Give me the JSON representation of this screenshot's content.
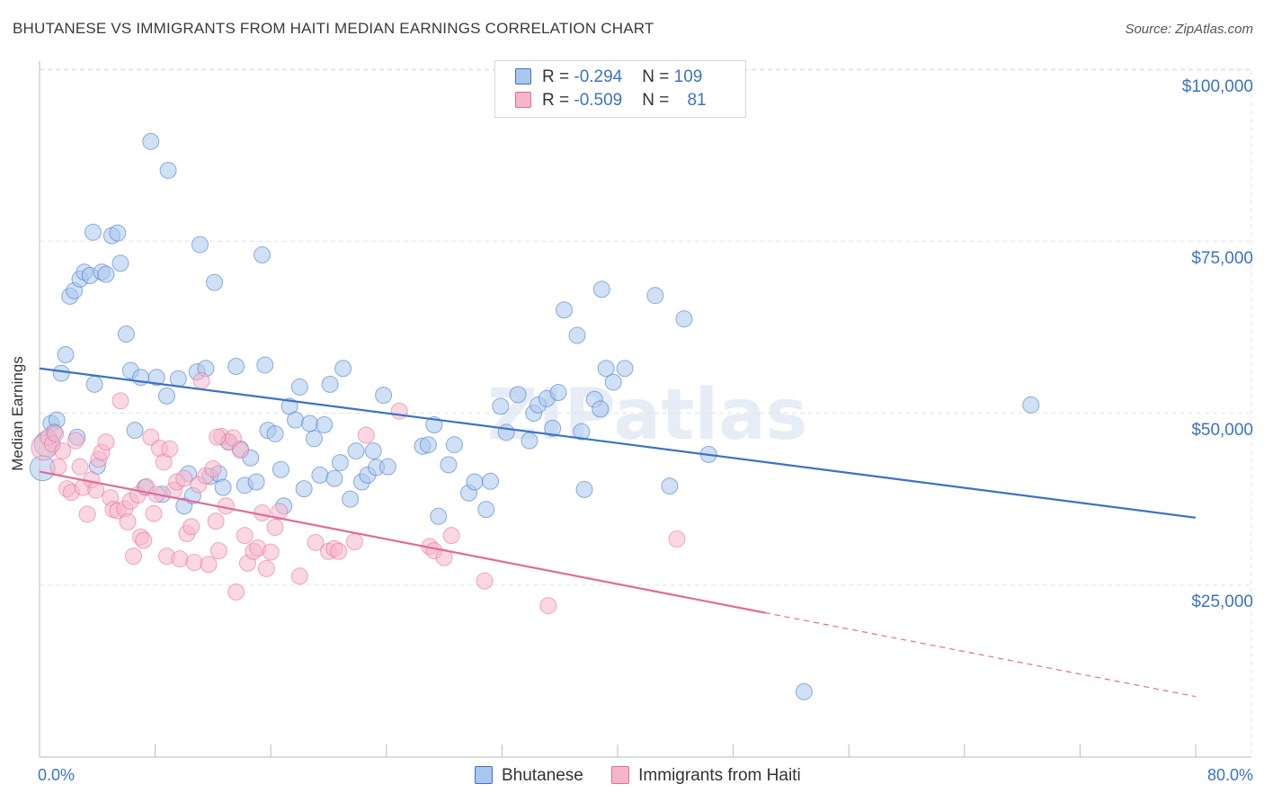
{
  "title": "BHUTANESE VS IMMIGRANTS FROM HAITI MEDIAN EARNINGS CORRELATION CHART",
  "source": "Source: ZipAtlas.com",
  "watermark": "ZIPatlas",
  "colors": {
    "blue": "#3a73c4",
    "blue_fill": "#a9c6ec",
    "pink": "#e46a96",
    "pink_fill": "#f5b6cb",
    "grid": "#e3e3e3"
  },
  "legend": {
    "rows": [
      {
        "r_label": "R = ",
        "r_value": "-0.294",
        "n_label": "N = ",
        "n_value": "109"
      },
      {
        "r_label": "R = ",
        "r_value": "-0.509",
        "n_label": "N = ",
        "n_value": "81"
      }
    ]
  },
  "chart_data": {
    "type": "scatter",
    "title": "BHUTANESE VS IMMIGRANTS FROM HAITI MEDIAN EARNINGS CORRELATION CHART",
    "xlabel": "",
    "ylabel": "Median Earnings",
    "xlim": [
      0,
      80
    ],
    "ylim": [
      0,
      102000
    ],
    "x_tick_labels": [
      "0.0%",
      "80.0%"
    ],
    "y_ticks": [
      25000,
      50000,
      75000,
      100000
    ],
    "y_tick_labels": [
      "$25,000",
      "$50,000",
      "$75,000",
      "$100,000"
    ],
    "grid": true,
    "legend_position": "bottom",
    "series": [
      {
        "name": "Bhutanese",
        "trend": {
          "x": [
            0,
            80
          ],
          "y": [
            56500,
            34800
          ],
          "solid_to": 80
        },
        "points": [
          [
            0.2,
            42000
          ],
          [
            0.5,
            45500
          ],
          [
            0.8,
            48500
          ],
          [
            1.2,
            49000
          ],
          [
            1.5,
            55800
          ],
          [
            1.8,
            58500
          ],
          [
            2.1,
            67000
          ],
          [
            2.4,
            67800
          ],
          [
            2.8,
            69500
          ],
          [
            3.1,
            70500
          ],
          [
            3.5,
            70000
          ],
          [
            3.8,
            54200
          ],
          [
            4.3,
            70500
          ],
          [
            4.6,
            70200
          ],
          [
            5.0,
            75800
          ],
          [
            5.4,
            76200
          ],
          [
            3.7,
            76300
          ],
          [
            5.6,
            71800
          ],
          [
            6.0,
            61500
          ],
          [
            6.3,
            56200
          ],
          [
            6.6,
            47500
          ],
          [
            7.0,
            55200
          ],
          [
            7.3,
            39200
          ],
          [
            7.7,
            89500
          ],
          [
            8.1,
            55200
          ],
          [
            8.5,
            38200
          ],
          [
            8.8,
            52500
          ],
          [
            8.9,
            85300
          ],
          [
            9.6,
            55000
          ],
          [
            10.0,
            36500
          ],
          [
            10.3,
            41200
          ],
          [
            10.6,
            38000
          ],
          [
            10.9,
            56000
          ],
          [
            11.1,
            74500
          ],
          [
            11.5,
            56500
          ],
          [
            11.8,
            40800
          ],
          [
            12.1,
            69000
          ],
          [
            12.4,
            41200
          ],
          [
            12.7,
            39200
          ],
          [
            13.1,
            45800
          ],
          [
            13.6,
            56800
          ],
          [
            13.9,
            44800
          ],
          [
            14.2,
            39500
          ],
          [
            14.6,
            43500
          ],
          [
            15.0,
            40000
          ],
          [
            15.4,
            73000
          ],
          [
            15.6,
            57000
          ],
          [
            15.8,
            47500
          ],
          [
            16.3,
            47000
          ],
          [
            16.7,
            41800
          ],
          [
            16.9,
            36500
          ],
          [
            17.3,
            51000
          ],
          [
            17.7,
            49000
          ],
          [
            18.0,
            53800
          ],
          [
            18.3,
            39000
          ],
          [
            18.7,
            48500
          ],
          [
            19.0,
            46300
          ],
          [
            19.4,
            41000
          ],
          [
            19.7,
            48300
          ],
          [
            20.1,
            54200
          ],
          [
            20.4,
            40500
          ],
          [
            20.8,
            42800
          ],
          [
            21.0,
            56500
          ],
          [
            21.5,
            37500
          ],
          [
            21.9,
            44500
          ],
          [
            22.3,
            40000
          ],
          [
            22.7,
            41000
          ],
          [
            23.1,
            44500
          ],
          [
            23.3,
            42100
          ],
          [
            23.8,
            52600
          ],
          [
            24.1,
            42200
          ],
          [
            26.5,
            45200
          ],
          [
            26.9,
            45400
          ],
          [
            27.3,
            48300
          ],
          [
            27.6,
            35000
          ],
          [
            28.3,
            42500
          ],
          [
            28.7,
            45400
          ],
          [
            29.7,
            38400
          ],
          [
            30.1,
            40000
          ],
          [
            30.9,
            36000
          ],
          [
            31.2,
            40100
          ],
          [
            31.9,
            51000
          ],
          [
            32.3,
            47200
          ],
          [
            33.1,
            52700
          ],
          [
            33.9,
            46000
          ],
          [
            34.2,
            50000
          ],
          [
            34.5,
            51200
          ],
          [
            35.1,
            52100
          ],
          [
            35.5,
            47800
          ],
          [
            35.9,
            53000
          ],
          [
            36.3,
            65000
          ],
          [
            37.2,
            61300
          ],
          [
            37.5,
            47300
          ],
          [
            37.7,
            38900
          ],
          [
            38.4,
            52000
          ],
          [
            38.8,
            50600
          ],
          [
            38.9,
            68000
          ],
          [
            39.2,
            56500
          ],
          [
            39.7,
            54500
          ],
          [
            40.5,
            56500
          ],
          [
            42.6,
            67100
          ],
          [
            43.6,
            39400
          ],
          [
            44.6,
            63700
          ],
          [
            46.3,
            44000
          ],
          [
            52.9,
            9500
          ],
          [
            68.6,
            51200
          ],
          [
            1.0,
            47200
          ],
          [
            2.6,
            46500
          ],
          [
            4.0,
            42300
          ]
        ]
      },
      {
        "name": "Immigrants from Haiti",
        "trend": {
          "x": [
            0,
            80
          ],
          "y": [
            41500,
            8800
          ],
          "solid_to": 50.2
        },
        "points": [
          [
            0.3,
            45000
          ],
          [
            0.6,
            46500
          ],
          [
            0.9,
            45500
          ],
          [
            1.1,
            47000
          ],
          [
            1.3,
            42200
          ],
          [
            1.6,
            44500
          ],
          [
            1.9,
            39000
          ],
          [
            2.2,
            38500
          ],
          [
            2.5,
            46000
          ],
          [
            2.8,
            42200
          ],
          [
            3.0,
            39200
          ],
          [
            3.3,
            35300
          ],
          [
            3.6,
            40300
          ],
          [
            3.9,
            38800
          ],
          [
            4.1,
            43300
          ],
          [
            4.3,
            44300
          ],
          [
            4.6,
            45800
          ],
          [
            4.9,
            37700
          ],
          [
            5.1,
            36000
          ],
          [
            5.4,
            35800
          ],
          [
            5.6,
            51800
          ],
          [
            5.9,
            36100
          ],
          [
            6.1,
            34200
          ],
          [
            6.3,
            37200
          ],
          [
            6.5,
            29200
          ],
          [
            6.8,
            38100
          ],
          [
            7.0,
            32000
          ],
          [
            7.2,
            31500
          ],
          [
            7.4,
            39300
          ],
          [
            7.7,
            46500
          ],
          [
            7.9,
            35400
          ],
          [
            8.1,
            38200
          ],
          [
            8.3,
            44900
          ],
          [
            8.6,
            42900
          ],
          [
            8.8,
            29200
          ],
          [
            9.0,
            44800
          ],
          [
            9.3,
            38800
          ],
          [
            9.5,
            40000
          ],
          [
            9.7,
            28800
          ],
          [
            10.0,
            40500
          ],
          [
            10.2,
            32500
          ],
          [
            10.5,
            33500
          ],
          [
            10.7,
            28300
          ],
          [
            11.0,
            39600
          ],
          [
            11.2,
            54700
          ],
          [
            11.5,
            40900
          ],
          [
            11.7,
            28000
          ],
          [
            12.0,
            41900
          ],
          [
            12.2,
            34300
          ],
          [
            12.4,
            30000
          ],
          [
            12.6,
            46600
          ],
          [
            12.9,
            36500
          ],
          [
            13.1,
            45800
          ],
          [
            13.4,
            46400
          ],
          [
            13.6,
            24000
          ],
          [
            13.9,
            44600
          ],
          [
            14.2,
            32200
          ],
          [
            14.4,
            28200
          ],
          [
            14.8,
            29900
          ],
          [
            15.1,
            30400
          ],
          [
            15.4,
            35500
          ],
          [
            15.7,
            27400
          ],
          [
            16.0,
            29800
          ],
          [
            16.3,
            33400
          ],
          [
            16.6,
            35700
          ],
          [
            18.0,
            26300
          ],
          [
            19.1,
            31200
          ],
          [
            20.0,
            29900
          ],
          [
            20.4,
            30300
          ],
          [
            20.7,
            29900
          ],
          [
            21.8,
            31300
          ],
          [
            22.6,
            46800
          ],
          [
            24.9,
            50300
          ],
          [
            27.0,
            30600
          ],
          [
            27.3,
            30000
          ],
          [
            28.0,
            29000
          ],
          [
            28.5,
            32200
          ],
          [
            30.8,
            25600
          ],
          [
            35.2,
            22000
          ],
          [
            44.1,
            31700
          ],
          [
            12.3,
            46500
          ]
        ]
      }
    ]
  }
}
